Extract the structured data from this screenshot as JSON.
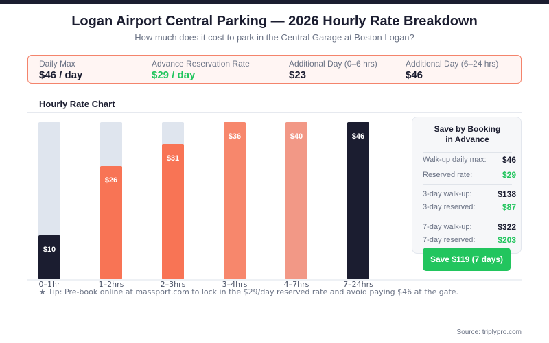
{
  "header": {
    "title": "Logan Airport Central Parking — 2026 Hourly Rate Breakdown",
    "subtitle": "How much does it cost to park in the Central Garage at Boston Logan?"
  },
  "summary": [
    {
      "label": "Daily Max",
      "value": "$46 / day",
      "highlight": false
    },
    {
      "label": "Advance Reservation Rate",
      "value": "$29 / day",
      "highlight": true
    },
    {
      "label": "Additional Day (0–6 hrs)",
      "value": "$23",
      "highlight": false
    },
    {
      "label": "Additional Day (6–24 hrs)",
      "value": "$46",
      "highlight": false
    }
  ],
  "chart_data": {
    "type": "bar",
    "title": "Hourly Rate Chart",
    "xlabel": "",
    "ylabel": "",
    "categories": [
      "0–1hr",
      "1–2hrs",
      "2–3hrs",
      "3–4hrs",
      "4–7hrs",
      "7–24hrs"
    ],
    "values": [
      10,
      26,
      31,
      36,
      40,
      46
    ],
    "value_labels": [
      "$10",
      "$26",
      "$31",
      "$36",
      "$40",
      "$46"
    ],
    "colors": [
      "#1b1d30",
      "#f87455",
      "#f87455",
      "#f7876c",
      "#f29886",
      "#1b1d30"
    ],
    "track_color": "#dfe5ee",
    "ylim": [
      0,
      36
    ],
    "grid": false,
    "legend": "none"
  },
  "tip": "★ Tip: Pre-book online at massport.com to lock in the $29/day reserved rate and avoid paying $46 at the gate.",
  "panel": {
    "title_line1": "Save by Booking",
    "title_line2": "in Advance",
    "rows": [
      {
        "label": "Walk-up daily max:",
        "value": "$46",
        "green": false
      },
      {
        "label": "Reserved rate:",
        "value": "$29",
        "green": true
      },
      {
        "label": "3-day walk-up:",
        "value": "$138",
        "green": false
      },
      {
        "label": "3-day reserved:",
        "value": "$87",
        "green": true
      },
      {
        "label": "7-day walk-up:",
        "value": "$322",
        "green": false
      },
      {
        "label": "7-day reserved:",
        "value": "$203",
        "green": true
      }
    ],
    "button": "Save $119 (7 days)"
  },
  "source": "Source: triplypro.com",
  "colors": {
    "accent": "#f87455",
    "navy": "#1b1d30",
    "green": "#22c55e"
  }
}
